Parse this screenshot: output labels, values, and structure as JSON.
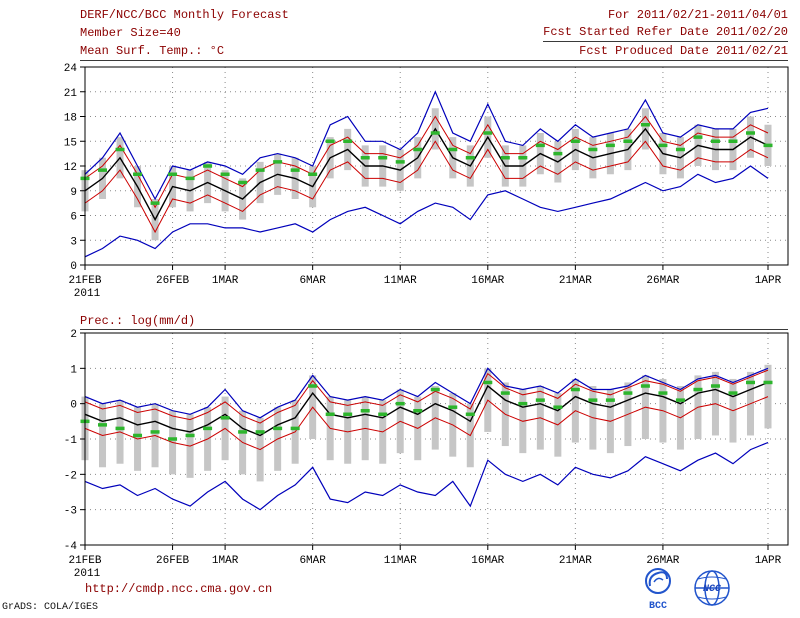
{
  "header": {
    "title": "DERF/NCC/BCC Monthly Forecast",
    "member_size": "Member Size=40",
    "for_range": "For 2011/02/21-2011/04/01",
    "refer_date": "Fcst Started Refer Date 2011/02/20",
    "produced_date": "Fcst Produced Date 2011/02/21"
  },
  "footer": {
    "url": "http://cmdp.ncc.cma.gov.cn",
    "credit": "GrADS: COLA/IGES",
    "logo_bcc": "BCC",
    "logo_ncc": "NCC"
  },
  "colors": {
    "header_text": "#8b0000",
    "envelope_line": "#0000bb",
    "spread_line": "#cc0000",
    "mean_line": "#000000",
    "obs_dash": "#2db52d",
    "spread_bar": "#c6c6c6",
    "grid": "#8a8a8a"
  },
  "chart_data": [
    {
      "type": "line",
      "title": "Mean Surf. Temp.: °C",
      "xlabel": "",
      "ylabel": "",
      "ylim": [
        0,
        24
      ],
      "yticks": [
        0,
        3,
        6,
        9,
        12,
        15,
        18,
        21,
        24
      ],
      "n_points": 40,
      "grid": "dotted",
      "legend_position": "none",
      "xticks": [
        {
          "i": 0,
          "label": "21FEB",
          "year": "2011"
        },
        {
          "i": 5,
          "label": "26FEB"
        },
        {
          "i": 8,
          "label": "1MAR"
        },
        {
          "i": 13,
          "label": "6MAR"
        },
        {
          "i": 18,
          "label": "11MAR"
        },
        {
          "i": 23,
          "label": "16MAR"
        },
        {
          "i": 28,
          "label": "21MAR"
        },
        {
          "i": 33,
          "label": "26MAR"
        },
        {
          "i": 39,
          "label": "1APR"
        }
      ],
      "series": [
        {
          "name": "ensemble-spread-bars",
          "style": "bar",
          "color": "#c6c6c6",
          "low": [
            6.5,
            8,
            10.5,
            7,
            3,
            7,
            6.5,
            7.5,
            6.5,
            5.5,
            7.5,
            8.5,
            8,
            7,
            10.5,
            11.5,
            9.5,
            9.5,
            9,
            10.5,
            14,
            10.5,
            9.5,
            13,
            9.5,
            9.5,
            11,
            10,
            11.5,
            10.5,
            11,
            11.5,
            14,
            11,
            10.5,
            12,
            11.5,
            11.5,
            13,
            12
          ],
          "high": [
            11.5,
            13,
            15.5,
            12,
            8,
            12,
            11.5,
            12.5,
            11.5,
            10.5,
            12.5,
            13.5,
            13,
            12,
            15.5,
            16.5,
            14.5,
            14.5,
            14,
            15.5,
            19,
            15.5,
            14.5,
            18,
            14.5,
            14.5,
            16,
            15,
            16.5,
            15.5,
            16,
            16.5,
            19,
            16,
            15.5,
            17,
            16.5,
            16.5,
            18,
            17
          ]
        },
        {
          "name": "ensemble-max",
          "style": "line",
          "color": "#0000bb",
          "width": 1.2,
          "values": [
            11,
            13,
            16,
            12,
            8,
            12,
            11.5,
            12.5,
            12,
            11,
            13,
            13.5,
            13,
            12,
            17,
            18,
            15,
            15,
            14,
            16,
            21,
            16,
            15,
            19.5,
            15,
            14.5,
            16.5,
            15,
            17,
            15.5,
            16,
            16.5,
            20,
            16,
            15.5,
            17,
            16.5,
            16.5,
            18.5,
            19
          ]
        },
        {
          "name": "ensemble-min",
          "style": "line",
          "color": "#0000bb",
          "width": 1.2,
          "values": [
            1,
            2,
            3.5,
            3,
            2,
            4,
            5,
            5,
            4.5,
            4.5,
            4,
            4.5,
            5,
            4,
            5.5,
            6.5,
            7,
            6,
            5,
            6.5,
            7.5,
            7,
            5.5,
            8.5,
            9,
            8,
            7,
            6.5,
            7,
            7.5,
            8,
            9,
            10,
            9,
            9.5,
            11,
            10,
            10.5,
            12,
            10.5
          ]
        },
        {
          "name": "mean-plus-spread",
          "style": "line",
          "color": "#cc0000",
          "width": 1,
          "values": [
            10.5,
            12,
            14.5,
            11,
            7,
            11,
            10.5,
            11.5,
            10.5,
            9.5,
            11.5,
            12.5,
            12,
            11,
            14.5,
            15.5,
            13.5,
            13.5,
            13,
            14.5,
            18,
            14.5,
            13.5,
            17,
            13.5,
            13.5,
            15,
            14,
            15.5,
            14.5,
            15,
            15.5,
            18,
            15,
            14.5,
            16,
            15.5,
            15.5,
            17,
            16
          ]
        },
        {
          "name": "mean-minus-spread",
          "style": "line",
          "color": "#cc0000",
          "width": 1,
          "values": [
            7.5,
            9,
            11.5,
            8,
            4,
            8,
            7.5,
            8.5,
            7.5,
            6.5,
            8.5,
            9.5,
            9,
            8,
            11.5,
            12.5,
            10.5,
            10.5,
            10,
            11.5,
            15,
            11.5,
            10.5,
            14,
            10.5,
            10.5,
            12,
            11,
            12.5,
            11.5,
            12,
            12.5,
            15,
            12,
            11.5,
            13,
            12.5,
            12.5,
            14,
            13
          ]
        },
        {
          "name": "ensemble-mean",
          "style": "line",
          "color": "#000000",
          "width": 1.4,
          "values": [
            9,
            10.5,
            13,
            9.5,
            5.5,
            9.5,
            9,
            10,
            9,
            8,
            10,
            11,
            10.5,
            9.5,
            13,
            14,
            12,
            12,
            11.5,
            13,
            16.5,
            13,
            12,
            15.5,
            12,
            12,
            13.5,
            12.5,
            14,
            13,
            13.5,
            14,
            16.5,
            13.5,
            13,
            14.5,
            14,
            14,
            15.5,
            14.5
          ]
        },
        {
          "name": "observation-dashes",
          "style": "dash",
          "color": "#2db52d",
          "values": [
            10.5,
            11.5,
            14,
            11,
            7.5,
            11,
            10.5,
            12,
            11,
            10,
            11.5,
            12.5,
            11.5,
            11,
            15,
            15,
            13,
            13,
            12.5,
            14,
            16,
            14,
            13,
            16,
            13,
            13,
            14.5,
            13.5,
            15,
            14,
            14.5,
            15,
            17,
            14.5,
            14,
            15.5,
            15,
            15,
            16,
            14.5
          ]
        }
      ]
    },
    {
      "type": "line",
      "title": "Prec.: log(mm/d)",
      "xlabel": "",
      "ylabel": "",
      "ylim": [
        -4,
        2
      ],
      "yticks": [
        -4,
        -3,
        -2,
        -1,
        0,
        1,
        2
      ],
      "n_points": 40,
      "grid": "dotted",
      "legend_position": "none",
      "xticks": [
        {
          "i": 0,
          "label": "21FEB",
          "year": "2011"
        },
        {
          "i": 5,
          "label": "26FEB"
        },
        {
          "i": 8,
          "label": "1MAR"
        },
        {
          "i": 13,
          "label": "6MAR"
        },
        {
          "i": 18,
          "label": "11MAR"
        },
        {
          "i": 23,
          "label": "16MAR"
        },
        {
          "i": 28,
          "label": "21MAR"
        },
        {
          "i": 33,
          "label": "26MAR"
        },
        {
          "i": 39,
          "label": "1APR"
        }
      ],
      "series": [
        {
          "name": "ensemble-spread-bars",
          "style": "bar",
          "color": "#c6c6c6",
          "low": [
            -1.6,
            -1.8,
            -1.7,
            -1.9,
            -1.8,
            -2,
            -2.1,
            -1.9,
            -1.6,
            -2,
            -2.2,
            -1.9,
            -1.7,
            -1,
            -1.6,
            -1.7,
            -1.6,
            -1.7,
            -1.4,
            -1.6,
            -1.3,
            -1.5,
            -1.8,
            -0.8,
            -1.2,
            -1.4,
            -1.3,
            -1.5,
            -1.1,
            -1.3,
            -1.4,
            -1.2,
            -1,
            -1.1,
            -1.3,
            -1,
            -0.9,
            -1.1,
            -0.9,
            -0.7
          ],
          "high": [
            0.2,
            0,
            0.1,
            -0.1,
            0,
            -0.2,
            -0.3,
            -0.1,
            0.2,
            -0.2,
            -0.4,
            -0.1,
            0.1,
            0.8,
            0.2,
            0.1,
            0.2,
            0.1,
            0.4,
            0.2,
            0.5,
            0.3,
            0,
            1,
            0.6,
            0.4,
            0.5,
            0.3,
            0.7,
            0.5,
            0.4,
            0.6,
            0.8,
            0.7,
            0.5,
            0.8,
            0.9,
            0.7,
            0.9,
            1.1
          ]
        },
        {
          "name": "ensemble-max",
          "style": "line",
          "color": "#0000bb",
          "width": 1.2,
          "values": [
            0.2,
            0,
            0.1,
            -0.1,
            0,
            -0.2,
            -0.3,
            -0.1,
            0.4,
            -0.2,
            -0.4,
            -0.1,
            0.1,
            0.8,
            0.2,
            0.1,
            0.2,
            0.1,
            0.4,
            0.2,
            0.6,
            0.3,
            0,
            1,
            0.5,
            0.4,
            0.5,
            0.3,
            0.7,
            0.4,
            0.4,
            0.5,
            0.8,
            0.6,
            0.4,
            0.7,
            0.8,
            0.6,
            0.8,
            1
          ]
        },
        {
          "name": "ensemble-min",
          "style": "line",
          "color": "#0000bb",
          "width": 1.2,
          "values": [
            -2.2,
            -2.4,
            -2.3,
            -2.6,
            -2.4,
            -2.7,
            -2.9,
            -2.5,
            -2.2,
            -2.7,
            -3,
            -2.6,
            -2.3,
            -1.8,
            -2.7,
            -2.8,
            -2.5,
            -2.6,
            -2.3,
            -2.5,
            -2.6,
            -2.2,
            -2.9,
            -1.6,
            -2,
            -2.2,
            -2,
            -2.3,
            -1.8,
            -2,
            -2.1,
            -1.9,
            -1.5,
            -1.7,
            -1.9,
            -1.6,
            -1.4,
            -1.7,
            -1.3,
            -1.1
          ]
        },
        {
          "name": "mean-plus-spread",
          "style": "line",
          "color": "#cc0000",
          "width": 1,
          "values": [
            0.05,
            -0.15,
            -0.05,
            -0.25,
            -0.15,
            -0.35,
            -0.45,
            -0.25,
            0.05,
            -0.35,
            -0.55,
            -0.25,
            -0.05,
            0.65,
            0.05,
            -0.05,
            0.05,
            -0.05,
            0.25,
            0.05,
            0.35,
            0.15,
            -0.15,
            0.85,
            0.45,
            0.25,
            0.35,
            0.15,
            0.55,
            0.35,
            0.25,
            0.45,
            0.65,
            0.55,
            0.35,
            0.65,
            0.75,
            0.55,
            0.75,
            0.95
          ]
        },
        {
          "name": "mean-minus-spread",
          "style": "line",
          "color": "#cc0000",
          "width": 1,
          "values": [
            -0.7,
            -0.9,
            -0.8,
            -1,
            -0.9,
            -1.1,
            -1.2,
            -1,
            -0.7,
            -1.1,
            -1.3,
            -1,
            -0.8,
            -0.1,
            -0.7,
            -0.8,
            -0.7,
            -0.8,
            -0.5,
            -0.7,
            -0.4,
            -0.6,
            -0.9,
            0.1,
            -0.3,
            -0.5,
            -0.4,
            -0.6,
            -0.2,
            -0.4,
            -0.5,
            -0.3,
            -0.1,
            -0.2,
            -0.4,
            -0.1,
            0,
            -0.2,
            0,
            0.2
          ]
        },
        {
          "name": "ensemble-mean",
          "style": "line",
          "color": "#000000",
          "width": 1.4,
          "values": [
            -0.3,
            -0.5,
            -0.4,
            -0.6,
            -0.5,
            -0.7,
            -0.8,
            -0.6,
            -0.3,
            -0.7,
            -0.9,
            -0.6,
            -0.4,
            0.3,
            -0.3,
            -0.4,
            -0.3,
            -0.4,
            -0.1,
            -0.3,
            0,
            -0.2,
            -0.5,
            0.5,
            0.1,
            -0.1,
            0,
            -0.2,
            0.2,
            0,
            -0.1,
            0.1,
            0.3,
            0.2,
            0,
            0.3,
            0.4,
            0.2,
            0.4,
            0.6
          ]
        },
        {
          "name": "observation-dashes",
          "style": "dash",
          "color": "#2db52d",
          "values": [
            -0.5,
            -0.6,
            -0.7,
            -0.9,
            -0.8,
            -1,
            -0.9,
            -0.7,
            -0.4,
            -0.8,
            -0.8,
            -0.7,
            -0.7,
            0.5,
            -0.3,
            -0.3,
            -0.2,
            -0.3,
            0,
            -0.2,
            0.4,
            -0.1,
            -0.3,
            0.6,
            0.3,
            0,
            0.1,
            -0.1,
            0.4,
            0.1,
            0.1,
            0.3,
            0.5,
            0.3,
            0.1,
            0.4,
            0.5,
            0.3,
            0.6,
            0.6
          ]
        }
      ]
    }
  ]
}
